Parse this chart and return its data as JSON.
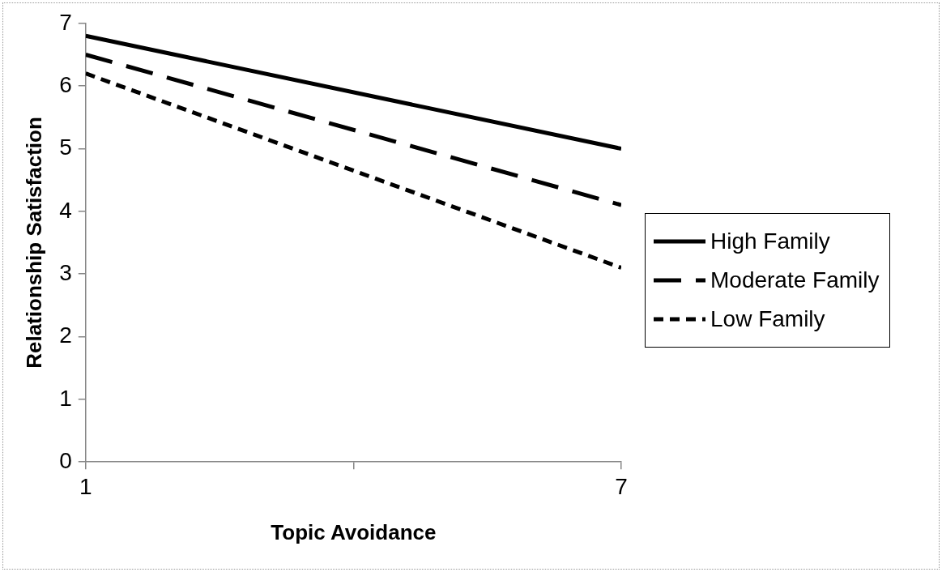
{
  "chart_data": {
    "type": "line",
    "xlabel": "Topic Avoidance",
    "ylabel": "Relationship Satisfaction",
    "x": [
      1,
      7
    ],
    "xlim": [
      1,
      7
    ],
    "xticks": [
      1,
      {
        "value": 4,
        "label": null
      },
      7
    ],
    "ylim": [
      0,
      7
    ],
    "yticks": [
      0,
      1,
      2,
      3,
      4,
      5,
      6,
      7
    ],
    "grid": false,
    "legend": "right",
    "marker": "none",
    "series": [
      {
        "name": "High Family",
        "color": "#000000",
        "line_style": "solid",
        "values": [
          6.8,
          5.0
        ]
      },
      {
        "name": "Moderate Family",
        "color": "#000000",
        "line_style": "dashed",
        "values": [
          6.5,
          4.1
        ]
      },
      {
        "name": "Low Family",
        "color": "#000000",
        "line_style": "dotted",
        "values": [
          6.2,
          3.1
        ]
      }
    ]
  }
}
